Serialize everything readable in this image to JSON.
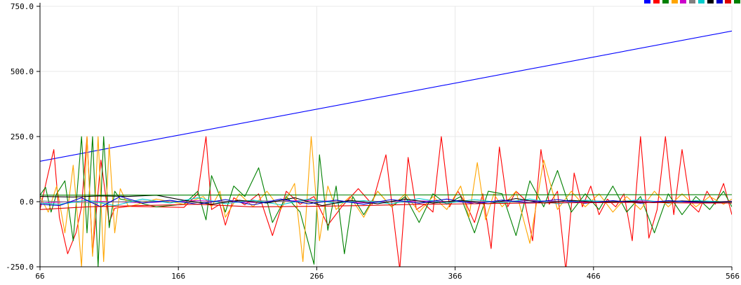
{
  "chart_data": {
    "type": "line",
    "title": "",
    "xlabel": "",
    "ylabel": "",
    "xlim": [
      66,
      566
    ],
    "ylim": [
      -250,
      750
    ],
    "grid": true,
    "legend": "top-right",
    "x_ticks": [
      {
        "value": 66,
        "label": "66"
      },
      {
        "value": 166,
        "label": "166"
      },
      {
        "value": 266,
        "label": "266"
      },
      {
        "value": 366,
        "label": "366"
      },
      {
        "value": 466,
        "label": "466"
      },
      {
        "value": 566,
        "label": "566"
      }
    ],
    "y_ticks": [
      {
        "value": -250,
        "label": "-250.0"
      },
      {
        "value": 0,
        "label": "0.0"
      },
      {
        "value": 250,
        "label": "250.0"
      },
      {
        "value": 500,
        "label": "500.0"
      },
      {
        "value": 750,
        "label": "750.0"
      }
    ],
    "series": [
      {
        "color": "#0000ff",
        "x": [
          66,
          566
        ],
        "values": [
          155,
          655
        ]
      },
      {
        "color": "#ff0000",
        "x": [
          66,
          72,
          76,
          80,
          86,
          92,
          96,
          100,
          104,
          110,
          116,
          120,
          130,
          150,
          170,
          180,
          186,
          190,
          196,
          200,
          206,
          214,
          224,
          234,
          244,
          254,
          264,
          274,
          284,
          296,
          306,
          316,
          326,
          332,
          338,
          344,
          350,
          356,
          362,
          368,
          374,
          380,
          386,
          392,
          398,
          404,
          410,
          416,
          422,
          428,
          434,
          440,
          446,
          452,
          458,
          464,
          470,
          476,
          482,
          488,
          494,
          500,
          506,
          512,
          518,
          524,
          530,
          536,
          542,
          548,
          554,
          560,
          566
        ],
        "values": [
          -30,
          110,
          200,
          -60,
          -200,
          -120,
          -20,
          250,
          -200,
          160,
          -80,
          -25,
          -18,
          -20,
          -22,
          30,
          250,
          -30,
          -10,
          -90,
          15,
          -12,
          30,
          -130,
          40,
          -10,
          20,
          -90,
          -20,
          50,
          -10,
          180,
          -260,
          170,
          -30,
          -10,
          -40,
          250,
          -20,
          40,
          -10,
          -80,
          30,
          -180,
          210,
          -20,
          40,
          10,
          -150,
          200,
          -10,
          40,
          -265,
          110,
          -20,
          60,
          -50,
          10,
          -20,
          30,
          -150,
          250,
          -140,
          -30,
          250,
          -50,
          200,
          -10,
          -40,
          40,
          -10,
          70,
          -50
        ]
      },
      {
        "color": "#008000",
        "x": [
          66,
          70,
          74,
          78,
          84,
          90,
          96,
          100,
          104,
          108,
          112,
          116,
          120,
          124,
          130,
          150,
          170,
          180,
          186,
          190,
          196,
          200,
          206,
          214,
          224,
          234,
          244,
          254,
          264,
          268,
          274,
          280,
          286,
          292,
          300,
          310,
          320,
          330,
          340,
          350,
          360,
          370,
          380,
          390,
          400,
          410,
          420,
          430,
          440,
          450,
          460,
          470,
          480,
          490,
          500,
          510,
          520,
          530,
          540,
          550,
          560,
          566
        ],
        "values": [
          25,
          55,
          -40,
          30,
          80,
          -150,
          250,
          -120,
          250,
          -250,
          250,
          -100,
          40,
          10,
          5,
          -20,
          -10,
          40,
          -70,
          100,
          20,
          -40,
          60,
          20,
          130,
          -80,
          20,
          -40,
          -240,
          180,
          -110,
          60,
          -200,
          20,
          -50,
          40,
          -20,
          20,
          -80,
          30,
          -10,
          20,
          -120,
          40,
          30,
          -130,
          80,
          -20,
          120,
          -40,
          30,
          -30,
          60,
          -40,
          20,
          -120,
          30,
          -50,
          20,
          -30,
          40,
          -20
        ]
      },
      {
        "color": "#ffa500",
        "x": [
          66,
          72,
          78,
          84,
          90,
          96,
          100,
          104,
          108,
          112,
          116,
          120,
          124,
          130,
          150,
          170,
          184,
          190,
          196,
          200,
          210,
          220,
          230,
          240,
          250,
          256,
          262,
          268,
          274,
          280,
          290,
          300,
          310,
          320,
          330,
          340,
          350,
          360,
          370,
          376,
          382,
          388,
          394,
          400,
          410,
          420,
          430,
          440,
          450,
          460,
          470,
          480,
          490,
          500,
          510,
          520,
          530,
          540,
          550,
          560,
          566
        ],
        "values": [
          20,
          -40,
          60,
          -120,
          140,
          -250,
          250,
          -210,
          250,
          -230,
          220,
          -120,
          50,
          -20,
          10,
          -10,
          20,
          -20,
          40,
          -60,
          30,
          -20,
          40,
          -30,
          70,
          -230,
          250,
          -150,
          60,
          -30,
          20,
          -60,
          40,
          -20,
          30,
          -40,
          20,
          -30,
          60,
          -60,
          150,
          -70,
          30,
          -20,
          40,
          -160,
          160,
          -30,
          40,
          -20,
          30,
          -40,
          20,
          -30,
          40,
          -20,
          30,
          -20,
          20,
          -10,
          10
        ]
      },
      {
        "color": "#cc00cc",
        "x": [
          66,
          100,
          140,
          180,
          220,
          260,
          300,
          340,
          380,
          420,
          460,
          500,
          540,
          566
        ],
        "values": [
          -5,
          3,
          -4,
          4,
          -3,
          5,
          -4,
          3,
          -3,
          4,
          -2,
          3,
          -3,
          2
        ]
      },
      {
        "color": "#808080",
        "x": [
          66,
          100,
          140,
          180,
          220,
          260,
          300,
          340,
          380,
          420,
          460,
          500,
          540,
          566
        ],
        "values": [
          3,
          -4,
          2,
          -3,
          4,
          -2,
          3,
          -4,
          2,
          -3,
          4,
          -2,
          3,
          -2
        ]
      },
      {
        "color": "#00cccc",
        "x": [
          66,
          80,
          100,
          120,
          140,
          160,
          180,
          200,
          220,
          240,
          260,
          280,
          300,
          320,
          340,
          360,
          380,
          400,
          420,
          440,
          460,
          480,
          500,
          520,
          540,
          566
        ],
        "values": [
          -5,
          -10,
          5,
          -15,
          10,
          -5,
          15,
          -8,
          6,
          -12,
          10,
          -6,
          4,
          -8,
          12,
          -6,
          8,
          -4,
          10,
          -8,
          6,
          -4,
          8,
          -6,
          4,
          -2
        ]
      },
      {
        "color": "#000000",
        "x": [
          66,
          90,
          110,
          130,
          150,
          170,
          190,
          210,
          230,
          250,
          270,
          290,
          310,
          330,
          350,
          370,
          390,
          410,
          430,
          450,
          470,
          490,
          510,
          530,
          550,
          566
        ],
        "values": [
          20,
          18,
          22,
          20,
          25,
          5,
          -10,
          5,
          -5,
          15,
          -15,
          5,
          -8,
          10,
          -5,
          5,
          -8,
          12,
          -5,
          5,
          -3,
          2,
          -4,
          3,
          -2,
          0
        ]
      },
      {
        "color": "#0000cc",
        "x": [
          66,
          80,
          96,
          110,
          124,
          140,
          160,
          180,
          200,
          220,
          240,
          260,
          280,
          300,
          320,
          340,
          360,
          380,
          400,
          420,
          440,
          460,
          480,
          500,
          520,
          540,
          566
        ],
        "values": [
          -10,
          -15,
          15,
          -20,
          20,
          -5,
          5,
          -10,
          8,
          -12,
          10,
          -8,
          6,
          -10,
          8,
          -6,
          10,
          -8,
          6,
          -4,
          8,
          -6,
          4,
          -6,
          4,
          -2,
          -5
        ]
      },
      {
        "color": "#dd0000",
        "x": [
          66,
          100,
          140,
          180,
          220,
          260,
          300,
          340,
          380,
          420,
          460,
          500,
          540,
          566
        ],
        "values": [
          -30,
          -20,
          -15,
          -10,
          -20,
          -18,
          -15,
          -10,
          -8,
          -5,
          -4,
          -3,
          -5,
          -5
        ]
      },
      {
        "color": "#008000",
        "x": [
          66,
          566
        ],
        "values": [
          25,
          27
        ]
      }
    ]
  }
}
